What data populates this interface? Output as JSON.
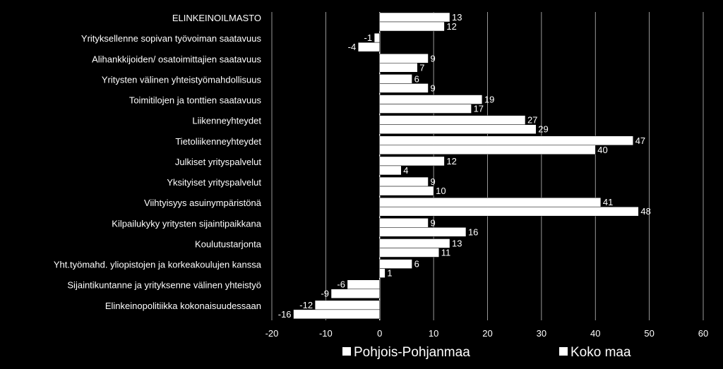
{
  "chart_data": {
    "type": "bar",
    "orientation": "horizontal",
    "categories": [
      "ELINKEINOILMASTO",
      "Yrityksellenne sopivan työvoiman saatavuus",
      "Alihankkijoiden/ osatoimittajien saatavuus",
      "Yritysten välinen yhteistyömahdollisuus",
      "Toimitilojen ja tonttien saatavuus",
      "Liikenneyhteydet",
      "Tietoliikenneyhteydet",
      "Julkiset yrityspalvelut",
      "Yksityiset yrityspalvelut",
      "Viihtyisyys asuinympäristönä",
      "Kilpailukyky yritysten sijaintipaikkana",
      "Koulutustarjonta",
      "Yht.työmahd. yliopistojen ja korkeakoulujen kanssa",
      "Sijaintikuntanne ja yrityksenne välinen yhteistyö",
      "Elinkeinopolitiikka kokonaisuudessaan"
    ],
    "series": [
      {
        "name": "Pohjois-Pohjanmaa",
        "values": [
          13,
          -1,
          9,
          6,
          19,
          27,
          47,
          12,
          9,
          41,
          9,
          13,
          6,
          -6,
          -12
        ]
      },
      {
        "name": "Koko maa",
        "values": [
          12,
          -4,
          7,
          9,
          17,
          29,
          40,
          4,
          10,
          48,
          16,
          11,
          1,
          -9,
          -16
        ]
      }
    ],
    "xlim": [
      -20,
      60
    ],
    "xticks": [
      "-20",
      "-10",
      "0",
      "10",
      "20",
      "30",
      "40",
      "50",
      "60"
    ],
    "grid": "vertical",
    "legend": "bottom",
    "bar_color": "#ffffff",
    "background": "#000000"
  }
}
